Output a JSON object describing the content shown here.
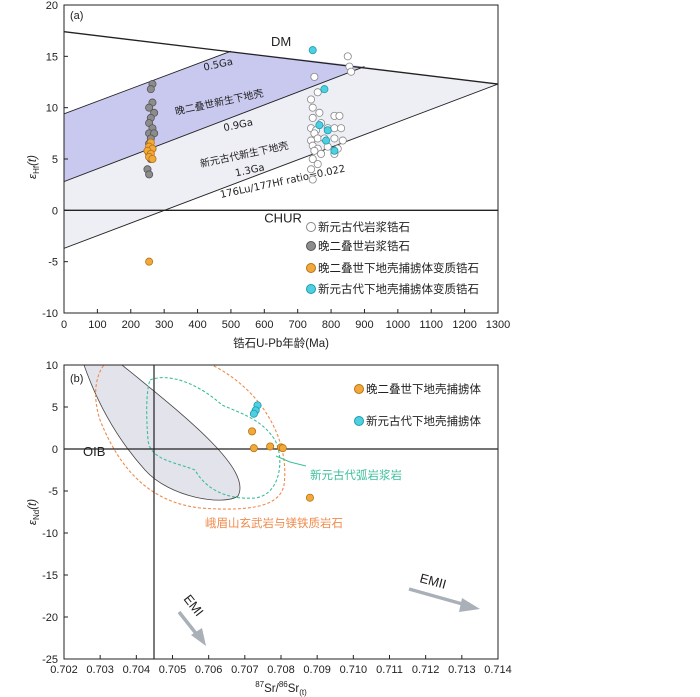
{
  "chart_data": [
    {
      "type": "scatter",
      "panel_label": "(a)",
      "xlabel": "锆石U-Pb年龄(Ma)",
      "ylabel": "εHf(t)",
      "ylabel_main": "ε",
      "ylabel_sub": "Hf",
      "ylabel_tail": "(t)",
      "xlim": [
        0,
        1300
      ],
      "ylim": [
        -10,
        20
      ],
      "xticks": [
        0,
        100,
        200,
        300,
        400,
        500,
        600,
        700,
        800,
        900,
        1000,
        1100,
        1200,
        1300
      ],
      "yticks": [
        -10,
        -5,
        0,
        5,
        10,
        15,
        20
      ],
      "reference_lines": {
        "DM": [
          [
            0,
            17.4
          ],
          [
            1300,
            12.3
          ]
        ],
        "CHUR": [
          [
            0,
            0
          ],
          [
            1300,
            0
          ]
        ],
        "line_0_5Ga": [
          [
            0,
            9.4
          ],
          [
            500,
            15.5
          ]
        ],
        "line_0_9Ga": [
          [
            0,
            2.8
          ],
          [
            900,
            14.0
          ]
        ],
        "line_1_3Ga": [
          [
            0,
            -3.7
          ],
          [
            1300,
            12.3
          ]
        ]
      },
      "shaded_regions": [
        {
          "name": "晚二叠世新生下地壳",
          "color": "#c9c9ef",
          "polygon": [
            [
              0,
              9.4
            ],
            [
              500,
              15.5
            ],
            [
              900,
              14.0
            ],
            [
              0,
              2.8
            ]
          ]
        },
        {
          "name": "新元古代新生下地壳",
          "color": "#eeeef5",
          "polygon": [
            [
              0,
              2.8
            ],
            [
              900,
              14.0
            ],
            [
              1300,
              12.3
            ],
            [
              0,
              -3.7
            ]
          ]
        }
      ],
      "annotations": [
        {
          "text": "DM",
          "x": 620,
          "y": 16
        },
        {
          "text": "CHUR",
          "x": 600,
          "y": -1.2
        },
        {
          "text": "0.5Ga",
          "x": 420,
          "y": 13.6,
          "rotate": -12
        },
        {
          "text": "晚二叠世新生下地壳",
          "x": 335,
          "y": 9.3,
          "rotate": -12
        },
        {
          "text": "0.9Ga",
          "x": 480,
          "y": 7.7,
          "rotate": -12
        },
        {
          "text": "新元古代新生下地壳",
          "x": 410,
          "y": 4.2,
          "rotate": -12
        },
        {
          "text": "1.3Ga",
          "x": 515,
          "y": 3.3,
          "rotate": -12
        },
        {
          "text": "176Lu/177Hf ratio=0.022",
          "x": 470,
          "y": 1.2,
          "rotate": -12
        }
      ],
      "series": [
        {
          "name": "新元古代岩浆锆石",
          "marker": "open-circle",
          "color": "#ffffff",
          "edge": "#888888",
          "points": [
            [
              850,
              15
            ],
            [
              855,
              14
            ],
            [
              860,
              13.5
            ],
            [
              750,
              13
            ],
            [
              760,
              11.5
            ],
            [
              740,
              10.8
            ],
            [
              745,
              10
            ],
            [
              765,
              9.5
            ],
            [
              810,
              9.2
            ],
            [
              825,
              9.2
            ],
            [
              745,
              9
            ],
            [
              770,
              8.5
            ],
            [
              740,
              8
            ],
            [
              755,
              7.8
            ],
            [
              790,
              8
            ],
            [
              810,
              8
            ],
            [
              830,
              8
            ],
            [
              750,
              7.5
            ],
            [
              760,
              7
            ],
            [
              740,
              6.8
            ],
            [
              780,
              7
            ],
            [
              810,
              7
            ],
            [
              835,
              6.8
            ],
            [
              745,
              6.3
            ],
            [
              760,
              6
            ],
            [
              790,
              6.2
            ],
            [
              820,
              6
            ],
            [
              750,
              5.8
            ],
            [
              770,
              5.5
            ],
            [
              810,
              5.5
            ],
            [
              745,
              5
            ],
            [
              760,
              4.5
            ],
            [
              740,
              4
            ],
            [
              745,
              3
            ]
          ]
        },
        {
          "name": "晚二叠世岩浆锆石",
          "marker": "filled-circle",
          "color": "#8c8c8c",
          "edge": "#555555",
          "points": [
            [
              265,
              12.3
            ],
            [
              260,
              11.8
            ],
            [
              265,
              10.5
            ],
            [
              255,
              10
            ],
            [
              270,
              9.5
            ],
            [
              260,
              9
            ],
            [
              255,
              8.5
            ],
            [
              265,
              8
            ],
            [
              255,
              7.5
            ],
            [
              270,
              7.5
            ],
            [
              260,
              7
            ],
            [
              255,
              6.5
            ],
            [
              265,
              6
            ],
            [
              255,
              5.5
            ],
            [
              260,
              5
            ],
            [
              250,
              4
            ],
            [
              255,
              3.5
            ]
          ]
        },
        {
          "name": "晚二叠世下地壳捕掳体变质锆石",
          "marker": "filled-circle",
          "color": "#f2a93b",
          "edge": "#b87214",
          "points": [
            [
              260,
              6.6
            ],
            [
              255,
              6.2
            ],
            [
              265,
              6
            ],
            [
              250,
              5.8
            ],
            [
              260,
              5.5
            ],
            [
              255,
              5.2
            ],
            [
              265,
              5
            ],
            [
              255,
              -5
            ]
          ]
        },
        {
          "name": "新元古代下地壳捕掳体变质锆石",
          "marker": "filled-circle",
          "color": "#4fd0e0",
          "edge": "#1a9bb0",
          "points": [
            [
              745,
              15.6
            ],
            [
              780,
              11.8
            ],
            [
              765,
              8.3
            ],
            [
              790,
              7.8
            ],
            [
              785,
              6.8
            ],
            [
              810,
              5.8
            ]
          ]
        }
      ]
    },
    {
      "type": "scatter",
      "panel_label": "(b)",
      "xlabel": "87Sr/86Sr(t)",
      "xlabel_sup1": "87",
      "xlabel_mid": "Sr/",
      "xlabel_sup2": "86",
      "xlabel_end": "Sr",
      "xlabel_sub": "(t)",
      "ylabel": "εNd(t)",
      "ylabel_main": "ε",
      "ylabel_sub": "Nd",
      "ylabel_tail": "(t)",
      "xlim": [
        0.702,
        0.714
      ],
      "ylim": [
        -25,
        10
      ],
      "xticks": [
        "0.702",
        "0.703",
        "0.704",
        "0.705",
        "0.706",
        "0.707",
        "0.708",
        "0.709",
        "0.710",
        "0.711",
        "0.712",
        "0.713",
        "0.714"
      ],
      "yticks": [
        -25,
        -20,
        -15,
        -10,
        -5,
        0,
        5,
        10
      ],
      "reference_lines": {
        "x_0_7045": 0.7045,
        "y_0": 0
      },
      "field_labels": {
        "OIB": "OIB",
        "emeishan": "峨眉山玄武岩与镁铁质岩石",
        "arc": "新元古代弧岩浆岩",
        "EMI": "EMI",
        "EMII": "EMII"
      },
      "series": [
        {
          "name": "晚二叠世下地壳捕掳体",
          "marker": "filled-circle",
          "color": "#f2a93b",
          "edge": "#b87214",
          "points": [
            [
              0.7072,
              2.1
            ],
            [
              0.70725,
              0.1
            ],
            [
              0.7077,
              0.3
            ],
            [
              0.708,
              0.2
            ],
            [
              0.70805,
              0.1
            ],
            [
              0.7088,
              -5.8
            ]
          ]
        },
        {
          "name": "新元古代下地壳捕掳体",
          "marker": "filled-circle",
          "color": "#4fd0e0",
          "edge": "#1a9bb0",
          "points": [
            [
              0.70735,
              5.2
            ],
            [
              0.7073,
              4.6
            ],
            [
              0.70725,
              4.2
            ]
          ]
        }
      ]
    }
  ],
  "colors": {
    "axis": "#222222",
    "lavender": "#c9c9ef",
    "pale": "#eeeef5",
    "oib_fill": "#e3e3ec",
    "orange_dash": "#f08a4b",
    "green_dash": "#3bbf9b",
    "arrow_gray": "#aab0b8"
  }
}
